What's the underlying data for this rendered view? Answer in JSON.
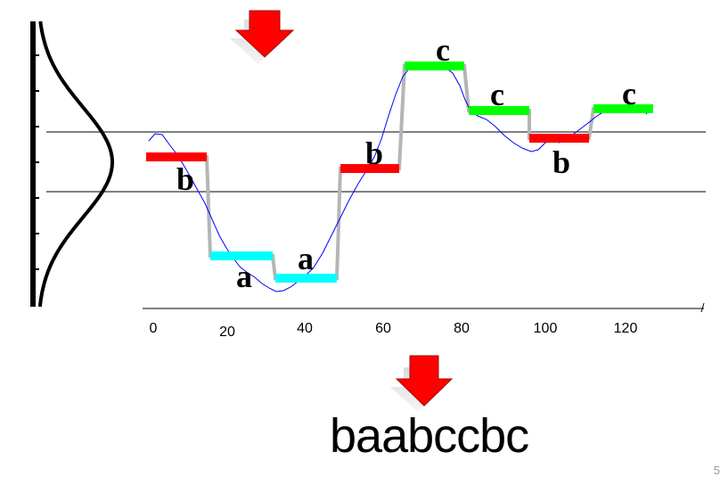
{
  "x_ticks": [
    "0",
    "20",
    "40",
    "60",
    "80",
    "100",
    "120"
  ],
  "segments": [
    {
      "symbol": "b",
      "color": "#ff0000"
    },
    {
      "symbol": "a",
      "color": "#00ffff"
    },
    {
      "symbol": "a",
      "color": "#00ffff"
    },
    {
      "symbol": "b",
      "color": "#ff0000"
    },
    {
      "symbol": "c",
      "color": "#00ff00"
    },
    {
      "symbol": "c",
      "color": "#00ff00"
    },
    {
      "symbol": "b",
      "color": "#ff0000"
    },
    {
      "symbol": "c",
      "color": "#00ff00"
    }
  ],
  "result_string": "baabccbc",
  "slide_number": "5",
  "colors": {
    "arrow": "#ff0000",
    "signal": "#0000ff",
    "stepped": "#b0b0b0",
    "breakpoint_lines": "#000000"
  }
}
